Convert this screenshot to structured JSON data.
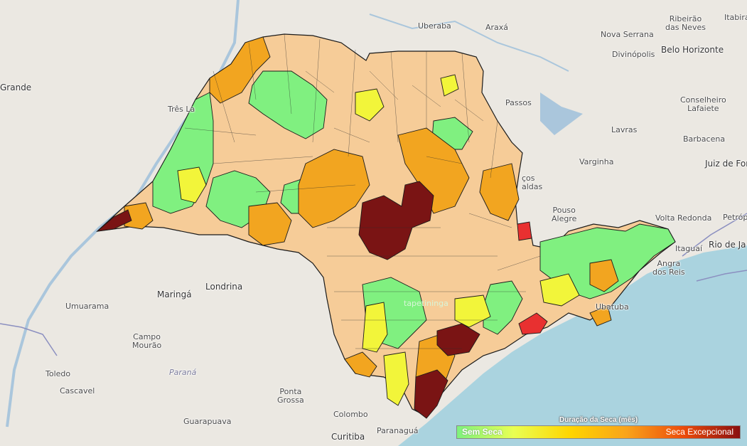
{
  "legend": {
    "title": "Duração da Seca (mês)",
    "min_label": "Sem Seca",
    "max_label": "Seca Excepcional",
    "colors": [
      "#7ef27e",
      "#e9ff52",
      "#ffd500",
      "#f9a31a",
      "#ec4c0c",
      "#8a0f0f"
    ]
  },
  "places": {
    "uberaba": "Uberaba",
    "araxa": "Araxá",
    "nova_serrana": "Nova Serrana",
    "divinopolis": "Divinópolis",
    "belo_horizonte": "Belo Horizonte",
    "ribeirao_das_neves_1": "Ribeirão",
    "ribeirao_das_neves_2": "das Neves",
    "itabira": "Itabira",
    "grande": "Grande",
    "tres_lagoas": "Três La",
    "passos": "Passos",
    "conselheiro_lafaiete_1": "Conselheiro",
    "conselheiro_lafaiete_2": "Lafaiete",
    "lavras": "Lavras",
    "barbacena": "Barbacena",
    "varginha": "Varginha",
    "juiz_de_fora": "Juiz de For",
    "pocos_caldas_1": "ços",
    "pocos_caldas_2": "aldas",
    "pouso_alegre_1": "Pouso",
    "pouso_alegre_2": "Alegre",
    "volta_redonda": "Volta Redonda",
    "petropolis": "Petrópo",
    "itaguai": "Itaguaí",
    "rio_de_janeiro": "Rio de Ja",
    "angra_1": "Angra",
    "angra_2": "dos Reis",
    "ubatuba": "Ubatuba",
    "maringa": "Maringá",
    "londrina": "Londrina",
    "umuarama": "Umuarama",
    "campo_mourao_1": "Campo",
    "campo_mourao_2": "Mourão",
    "toledo": "Toledo",
    "cascavel": "Cascavel",
    "parana": "Paraná",
    "ponta_grossa_1": "Ponta",
    "ponta_grossa_2": "Grossa",
    "guarapuava": "Guarapuava",
    "colombo": "Colombo",
    "curitiba": "Curitiba",
    "paranagua": "Paranaguá",
    "itapetininga": "tapetininga"
  },
  "map_colors": {
    "land": "#ebe8e2",
    "sea": "#aad3df",
    "river": "#aac6dc",
    "state_border": "#8b8fc0"
  }
}
